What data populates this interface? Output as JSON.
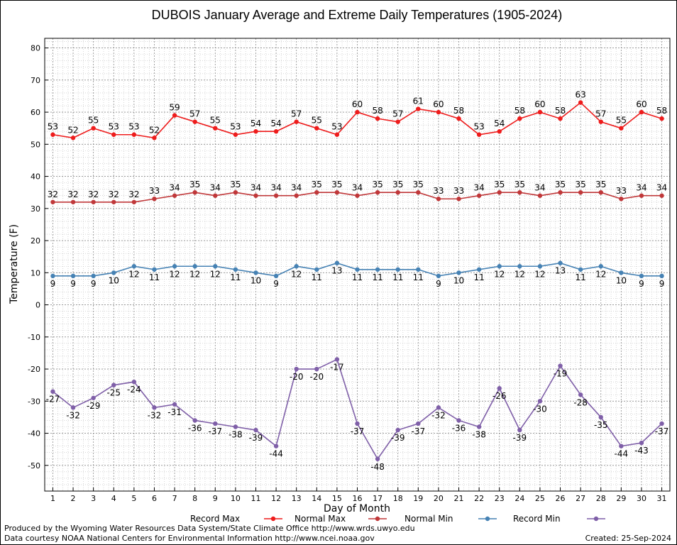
{
  "chart_data": {
    "type": "line",
    "title": "DUBOIS January Average and Extreme Daily Temperatures (1905-2024)",
    "xlabel": "Day of Month",
    "ylabel": "Temperature (F)",
    "x": [
      1,
      2,
      3,
      4,
      5,
      6,
      7,
      8,
      9,
      10,
      11,
      12,
      13,
      14,
      15,
      16,
      17,
      18,
      19,
      20,
      21,
      22,
      23,
      24,
      25,
      26,
      27,
      28,
      29,
      30,
      31
    ],
    "xlim": [
      0.6,
      31.4
    ],
    "ylim": [
      -58,
      83
    ],
    "yticks": [
      -50,
      -40,
      -30,
      -20,
      -10,
      0,
      10,
      20,
      30,
      40,
      50,
      60,
      70,
      80
    ],
    "grid": true,
    "legend_position": "bottom",
    "series": [
      {
        "name": "Record Max",
        "color": "#ee1c1c",
        "values": [
          53,
          52,
          55,
          53,
          53,
          52,
          59,
          57,
          55,
          53,
          54,
          54,
          57,
          55,
          53,
          60,
          58,
          57,
          61,
          60,
          58,
          53,
          54,
          58,
          60,
          58,
          63,
          57,
          55,
          60,
          58
        ]
      },
      {
        "name": "Normal Max",
        "color": "#c0383a",
        "values": [
          32,
          32,
          32,
          32,
          32,
          33,
          34,
          35,
          34,
          35,
          34,
          34,
          34,
          35,
          35,
          34,
          35,
          35,
          35,
          33,
          33,
          34,
          35,
          35,
          34,
          35,
          35,
          35,
          33,
          34,
          34
        ]
      },
      {
        "name": "Normal Min",
        "color": "#4682b4",
        "values": [
          9,
          9,
          9,
          10,
          12,
          11,
          12,
          12,
          12,
          11,
          10,
          9,
          12,
          11,
          13,
          11,
          11,
          11,
          11,
          9,
          10,
          11,
          12,
          12,
          12,
          13,
          11,
          12,
          10,
          9,
          9
        ]
      },
      {
        "name": "Record Min",
        "color": "#7f5fa8",
        "values": [
          -27,
          -32,
          -29,
          -25,
          -24,
          -32,
          -31,
          -36,
          -37,
          -38,
          -39,
          -44,
          -20,
          -20,
          -17,
          -37,
          -48,
          -39,
          -37,
          -32,
          -36,
          -38,
          -26,
          -39,
          -30,
          -19,
          -28,
          -35,
          -44,
          -43,
          -37
        ]
      }
    ]
  },
  "footer": {
    "produced_by": "Produced by the Wyoming Water Resources Data System/State Climate Office http://www.wrds.uwyo.edu",
    "courtesy": "Data courtesy NOAA National Centers for Environmental Information http://www.ncei.noaa.gov",
    "created": "Created:  25-Sep-2024"
  }
}
